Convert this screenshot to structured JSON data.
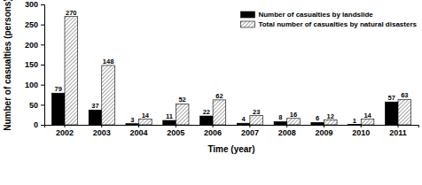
{
  "chart_data": {
    "type": "bar",
    "x_label": "Time (year)",
    "y_label": "Number of casualties (persons)",
    "categories": [
      "2002",
      "2003",
      "2004",
      "2005",
      "2006",
      "2007",
      "2008",
      "2009",
      "2010",
      "2011"
    ],
    "series": [
      {
        "name": "Number of casualties by landslide",
        "color": "#000000",
        "values": [
          79,
          37,
          3,
          11,
          22,
          4,
          8,
          6,
          1,
          57
        ]
      },
      {
        "name": "Total number of casualties by natural disasters",
        "color": "#6e6e6e",
        "values": [
          270,
          148,
          14,
          52,
          62,
          23,
          16,
          12,
          14,
          63
        ]
      }
    ],
    "ylim": [
      0,
      300
    ],
    "yticks": [
      0,
      50,
      100,
      150,
      200,
      250,
      300
    ],
    "legend": "upper right",
    "data_labels": true
  }
}
